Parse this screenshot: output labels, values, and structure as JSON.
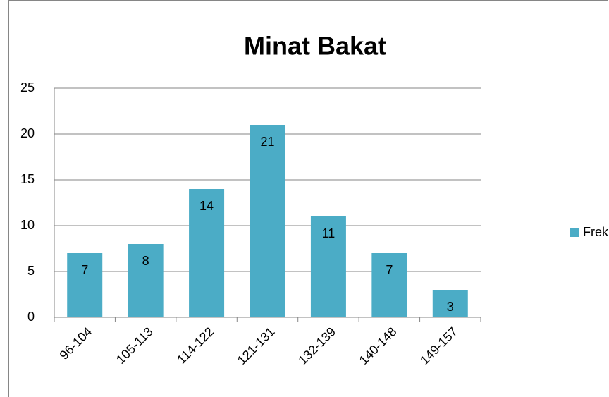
{
  "chart_data": {
    "type": "bar",
    "title": "Minat Bakat",
    "categories": [
      "96-104",
      "105-113",
      "114-122",
      "121-131",
      "132-139",
      "140-148",
      "149-157"
    ],
    "series": [
      {
        "name": "Frekuensi",
        "color": "#4bacc6",
        "values": [
          7,
          8,
          14,
          21,
          11,
          7,
          3
        ]
      }
    ],
    "ylim": [
      0,
      25
    ],
    "yticks": [
      0,
      5,
      10,
      15,
      20,
      25
    ],
    "grid": true,
    "legend": "right"
  }
}
